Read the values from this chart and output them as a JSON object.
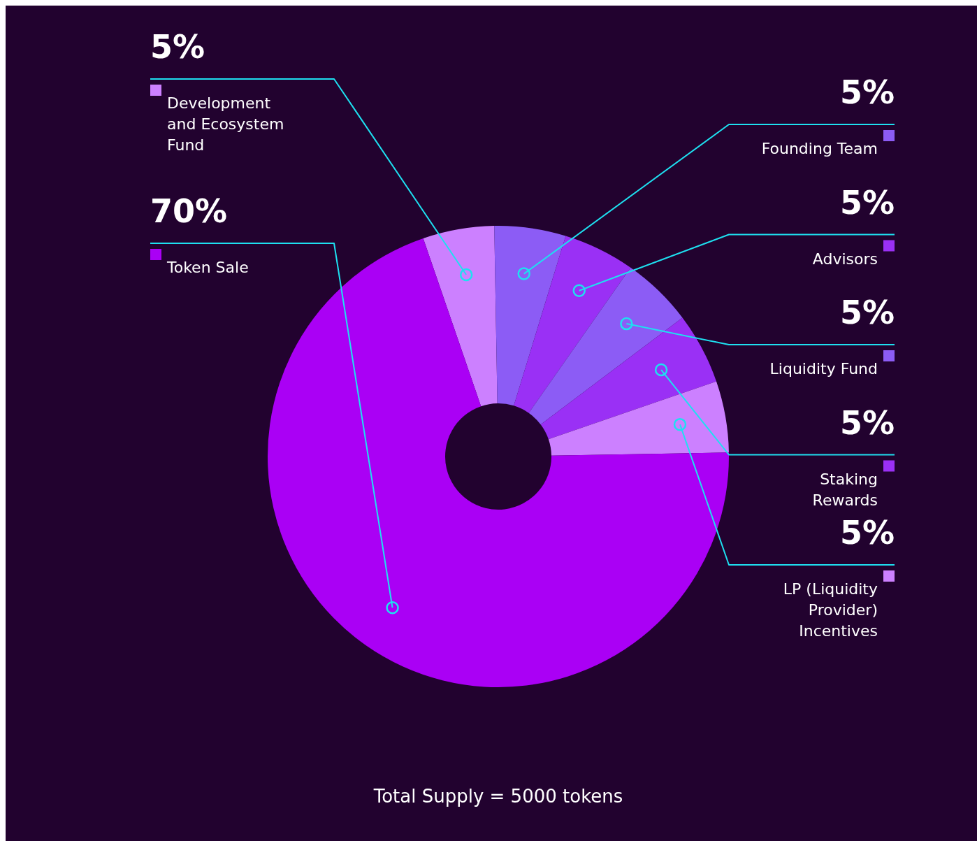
{
  "chart_data": {
    "type": "donut",
    "categories": [
      "Development and Ecosystem Fund",
      "Founding Team",
      "Advisors",
      "Liquidity Fund",
      "Staking Rewards",
      "LP (Liquidity Provider) Incentives",
      "Token Sale"
    ],
    "values": [
      5,
      5,
      5,
      5,
      5,
      5,
      70
    ],
    "value_labels": [
      "5%",
      "5%",
      "5%",
      "5%",
      "5%",
      "5%",
      "70%"
    ],
    "colors": [
      "#cc80ff",
      "#8c5cf5",
      "#9a30f5",
      "#8c5cf5",
      "#9a30f5",
      "#cc80ff",
      "#aa00f5"
    ],
    "annotations": [
      "Total Supply = 5000 tokens"
    ],
    "legend": "right"
  }
}
